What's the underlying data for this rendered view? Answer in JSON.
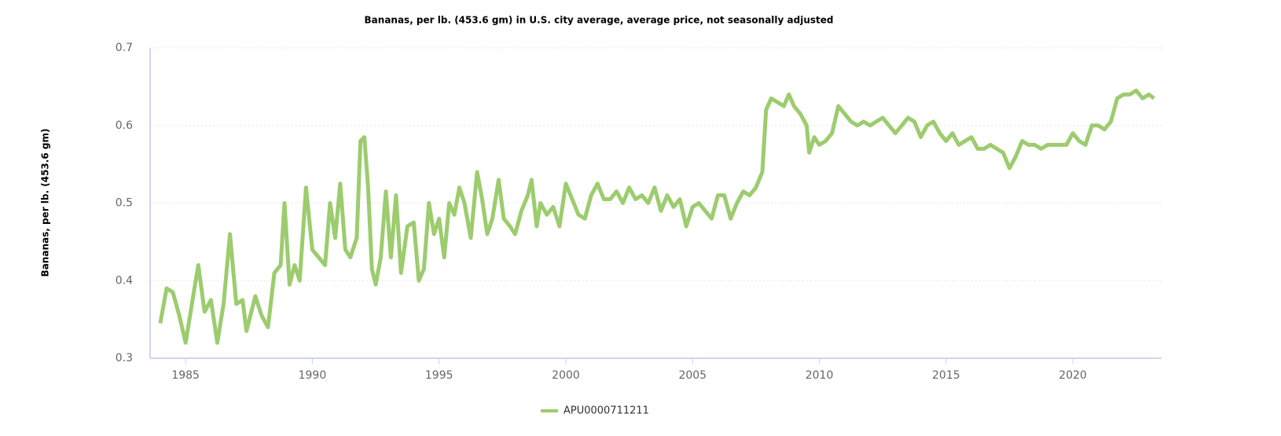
{
  "chart_data": {
    "type": "line",
    "title": "Bananas, per lb. (453.6 gm) in U.S. city average, average price, not seasonally adjusted",
    "y_label": "Bananas, per lb. (453.6 gm)",
    "x": [
      1984.0,
      1984.25,
      1984.5,
      1984.75,
      1985.0,
      1985.25,
      1985.5,
      1985.75,
      1986.0,
      1986.25,
      1986.5,
      1986.75,
      1987.0,
      1987.25,
      1987.4,
      1987.75,
      1988.0,
      1988.25,
      1988.5,
      1988.75,
      1988.9,
      1989.1,
      1989.3,
      1989.5,
      1989.75,
      1990.0,
      1990.25,
      1990.5,
      1990.7,
      1990.9,
      1991.1,
      1991.3,
      1991.5,
      1991.75,
      1991.9,
      1992.05,
      1992.2,
      1992.35,
      1992.5,
      1992.7,
      1992.9,
      1993.1,
      1993.3,
      1993.5,
      1993.75,
      1994.0,
      1994.2,
      1994.4,
      1994.6,
      1994.8,
      1995.0,
      1995.2,
      1995.4,
      1995.6,
      1995.8,
      1996.0,
      1996.25,
      1996.5,
      1996.7,
      1996.9,
      1997.1,
      1997.35,
      1997.55,
      1997.8,
      1998.0,
      1998.25,
      1998.5,
      1998.65,
      1998.85,
      1999.0,
      1999.25,
      1999.5,
      1999.75,
      2000.0,
      2000.25,
      2000.5,
      2000.75,
      2001.0,
      2001.25,
      2001.5,
      2001.75,
      2002.0,
      2002.25,
      2002.5,
      2002.75,
      2003.0,
      2003.25,
      2003.5,
      2003.75,
      2004.0,
      2004.25,
      2004.5,
      2004.75,
      2005.0,
      2005.25,
      2005.5,
      2005.75,
      2006.0,
      2006.25,
      2006.5,
      2006.75,
      2007.0,
      2007.25,
      2007.5,
      2007.75,
      2007.9,
      2008.1,
      2008.35,
      2008.6,
      2008.8,
      2009.0,
      2009.25,
      2009.5,
      2009.6,
      2009.8,
      2010.0,
      2010.25,
      2010.5,
      2010.75,
      2011.0,
      2011.25,
      2011.5,
      2011.75,
      2012.0,
      2012.25,
      2012.5,
      2012.75,
      2013.0,
      2013.25,
      2013.5,
      2013.75,
      2014.0,
      2014.25,
      2014.5,
      2014.75,
      2015.0,
      2015.25,
      2015.5,
      2015.75,
      2016.0,
      2016.25,
      2016.5,
      2016.75,
      2017.0,
      2017.25,
      2017.5,
      2017.75,
      2018.0,
      2018.25,
      2018.5,
      2018.75,
      2019.0,
      2019.25,
      2019.5,
      2019.75,
      2020.0,
      2020.25,
      2020.5,
      2020.75,
      2021.0,
      2021.25,
      2021.5,
      2021.75,
      2022.0,
      2022.25,
      2022.5,
      2022.75,
      2023.0,
      2023.2
    ],
    "series": [
      {
        "name": "APU0000711211",
        "color": "#9ccc6e",
        "values": [
          0.345,
          0.39,
          0.385,
          0.355,
          0.32,
          0.37,
          0.42,
          0.36,
          0.375,
          0.32,
          0.37,
          0.46,
          0.37,
          0.375,
          0.335,
          0.38,
          0.355,
          0.34,
          0.41,
          0.42,
          0.5,
          0.395,
          0.42,
          0.4,
          0.52,
          0.44,
          0.43,
          0.42,
          0.5,
          0.455,
          0.525,
          0.44,
          0.43,
          0.455,
          0.58,
          0.585,
          0.52,
          0.415,
          0.395,
          0.43,
          0.515,
          0.43,
          0.51,
          0.41,
          0.47,
          0.475,
          0.4,
          0.415,
          0.5,
          0.46,
          0.48,
          0.43,
          0.5,
          0.485,
          0.52,
          0.5,
          0.455,
          0.54,
          0.505,
          0.46,
          0.48,
          0.53,
          0.48,
          0.47,
          0.46,
          0.49,
          0.51,
          0.53,
          0.47,
          0.5,
          0.485,
          0.495,
          0.47,
          0.525,
          0.505,
          0.485,
          0.48,
          0.51,
          0.525,
          0.505,
          0.505,
          0.515,
          0.5,
          0.52,
          0.505,
          0.51,
          0.5,
          0.52,
          0.49,
          0.51,
          0.495,
          0.505,
          0.47,
          0.495,
          0.5,
          0.49,
          0.48,
          0.51,
          0.51,
          0.48,
          0.5,
          0.515,
          0.51,
          0.52,
          0.54,
          0.62,
          0.635,
          0.63,
          0.625,
          0.64,
          0.625,
          0.615,
          0.6,
          0.565,
          0.585,
          0.575,
          0.58,
          0.59,
          0.625,
          0.615,
          0.605,
          0.6,
          0.605,
          0.6,
          0.605,
          0.61,
          0.6,
          0.59,
          0.6,
          0.61,
          0.605,
          0.585,
          0.6,
          0.605,
          0.59,
          0.58,
          0.59,
          0.575,
          0.58,
          0.585,
          0.57,
          0.57,
          0.575,
          0.57,
          0.565,
          0.545,
          0.56,
          0.58,
          0.575,
          0.575,
          0.57,
          0.575,
          0.575,
          0.575,
          0.575,
          0.59,
          0.58,
          0.575,
          0.6,
          0.6,
          0.595,
          0.605,
          0.635,
          0.64,
          0.64,
          0.645,
          0.635,
          0.64,
          0.635
        ]
      }
    ],
    "xlim": [
      1983.6,
      2023.5
    ],
    "xticks": [
      1985,
      1990,
      1995,
      2000,
      2005,
      2010,
      2015,
      2020
    ],
    "ylim": [
      0.3,
      0.7
    ],
    "yticks": [
      0.3,
      0.4,
      0.5,
      0.6,
      0.7
    ],
    "grid": true
  }
}
